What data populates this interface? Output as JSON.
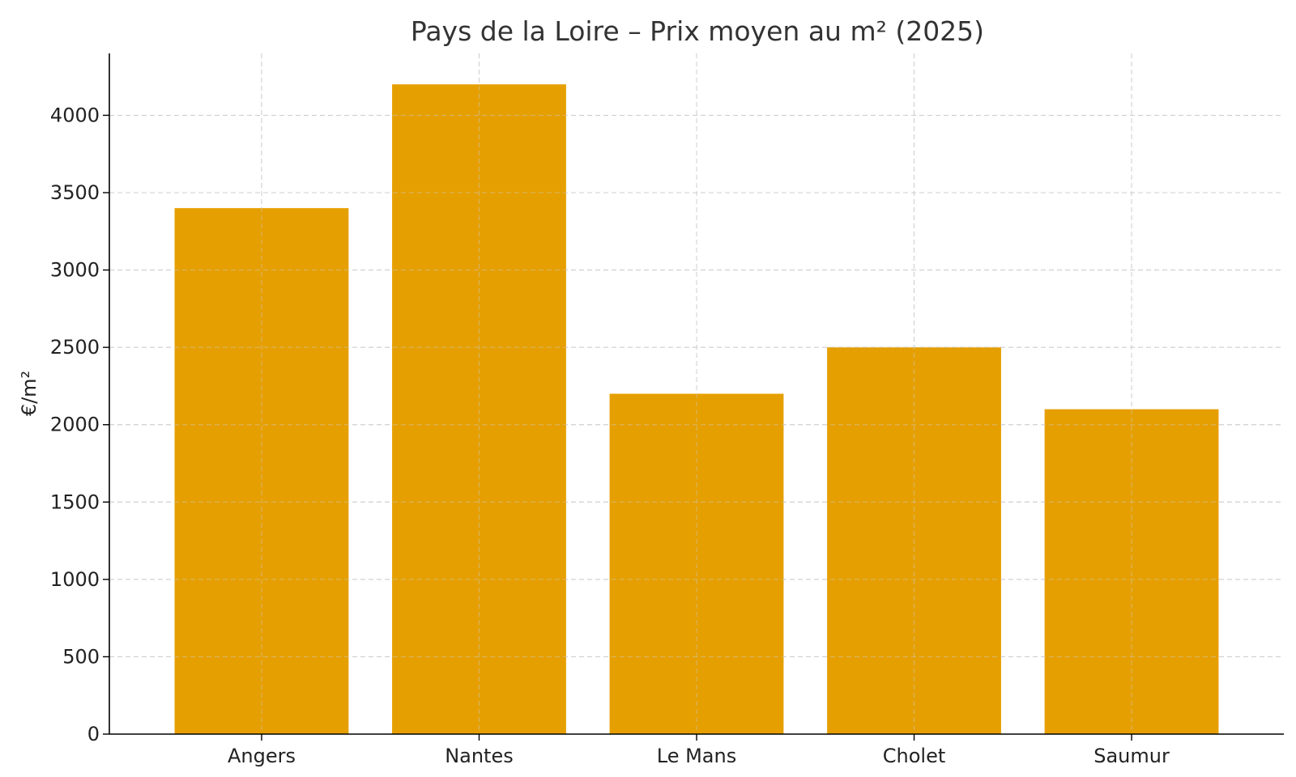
{
  "chart_data": {
    "type": "bar",
    "title": "Pays de la Loire – Prix moyen au m² (2025)",
    "xlabel": "",
    "ylabel": "€/m²",
    "categories": [
      "Angers",
      "Nantes",
      "Le Mans",
      "Cholet",
      "Saumur"
    ],
    "values": [
      3400,
      4200,
      2200,
      2500,
      2100
    ],
    "ylim": [
      0,
      4400
    ],
    "yticks": [
      0,
      500,
      1000,
      1500,
      2000,
      2500,
      3000,
      3500,
      4000
    ],
    "grid": true,
    "bar_color": "#E69F00"
  }
}
